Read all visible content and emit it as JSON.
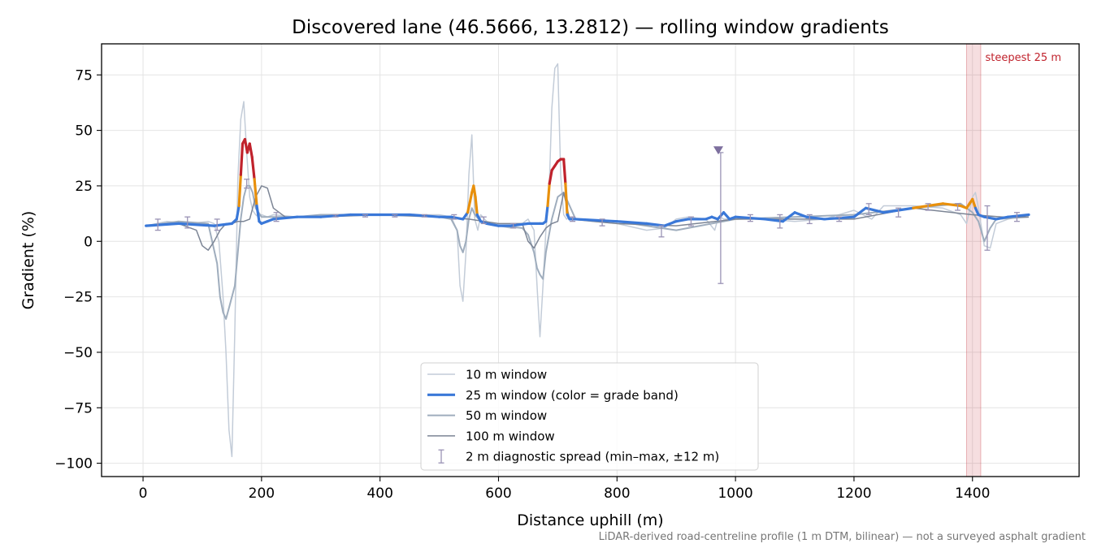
{
  "chart_data": {
    "type": "line",
    "title": "Discovered lane (46.5666, 13.2812) — rolling window gradients",
    "xlabel": "Distance uphill (m)",
    "ylabel": "Gradient (%)",
    "xlim": [
      -70,
      1580
    ],
    "ylim": [
      -106,
      89
    ],
    "xticks": [
      0,
      200,
      400,
      600,
      800,
      1000,
      1200,
      1400
    ],
    "yticks": [
      -100,
      -75,
      -50,
      -25,
      0,
      25,
      50,
      75
    ],
    "xtick_labels": [
      "0",
      "200",
      "400",
      "600",
      "800",
      "1000",
      "1200",
      "1400"
    ],
    "ytick_labels": [
      "−100",
      "−75",
      "−50",
      "−25",
      "0",
      "25",
      "50",
      "75"
    ],
    "grid": true,
    "legend_position": "lower center",
    "footnote": "LiDAR-derived road-centreline profile (1 m DTM, bilinear) — not a surveyed asphalt gradient",
    "annotation": {
      "text": "steepest 25 m",
      "x_range": [
        1390,
        1414
      ],
      "color": "#c0222c"
    },
    "grade_band_colors": {
      "low": "#3a78d8",
      "mid": "#e8900c",
      "high": "#c0222c"
    },
    "series": [
      {
        "name": "10 m window",
        "color": "#c3ccd8",
        "x": [
          5,
          40,
          80,
          110,
          120,
          128,
          135,
          140,
          145,
          150,
          155,
          160,
          165,
          170,
          175,
          180,
          185,
          190,
          195,
          200,
          210,
          220,
          260,
          300,
          350,
          400,
          450,
          500,
          520,
          530,
          535,
          540,
          545,
          550,
          555,
          560,
          565,
          570,
          580,
          600,
          620,
          640,
          650,
          660,
          665,
          670,
          675,
          680,
          685,
          690,
          695,
          700,
          705,
          710,
          715,
          720,
          730,
          760,
          800,
          850,
          880,
          900,
          920,
          950,
          965,
          970,
          975,
          980,
          1000,
          1050,
          1100,
          1150,
          1200,
          1230,
          1250,
          1300,
          1350,
          1380,
          1390,
          1400,
          1405,
          1410,
          1420,
          1430,
          1440,
          1460,
          1495
        ],
        "y": [
          7,
          9,
          8,
          9,
          8,
          0,
          -25,
          -50,
          -85,
          -97,
          -40,
          28,
          55,
          63,
          40,
          20,
          14,
          12,
          11,
          12,
          11,
          12,
          11,
          11,
          12,
          12,
          12,
          12,
          11,
          5,
          -20,
          -27,
          -5,
          30,
          48,
          10,
          5,
          12,
          9,
          7,
          6,
          8,
          10,
          5,
          -20,
          -43,
          -20,
          5,
          20,
          60,
          78,
          80,
          30,
          12,
          10,
          11,
          10,
          9,
          8,
          5,
          6,
          10,
          11,
          10,
          5,
          10,
          11,
          10,
          10,
          10,
          9,
          10,
          14,
          10,
          16,
          16,
          15,
          12,
          8,
          20,
          22,
          15,
          -2,
          -3,
          8,
          10,
          12
        ]
      },
      {
        "name": "50 m window",
        "color": "#9fadbd",
        "x": [
          5,
          60,
          110,
          125,
          130,
          135,
          140,
          145,
          150,
          155,
          160,
          165,
          170,
          175,
          180,
          185,
          190,
          200,
          220,
          260,
          300,
          400,
          500,
          520,
          530,
          535,
          540,
          545,
          550,
          555,
          560,
          570,
          600,
          640,
          650,
          660,
          665,
          670,
          675,
          680,
          690,
          700,
          710,
          730,
          800,
          900,
          1000,
          1100,
          1200,
          1300,
          1380,
          1390,
          1400,
          1410,
          1420,
          1430,
          1440,
          1495
        ],
        "y": [
          7,
          9,
          8,
          -10,
          -25,
          -32,
          -35,
          -30,
          -25,
          -20,
          -5,
          10,
          20,
          25,
          25,
          22,
          15,
          11,
          11,
          11,
          12,
          12,
          11,
          10,
          5,
          -2,
          -5,
          0,
          10,
          15,
          12,
          9,
          7,
          6,
          3,
          -5,
          -12,
          -15,
          -17,
          -5,
          10,
          20,
          22,
          10,
          9,
          5,
          10,
          11,
          12,
          15,
          17,
          15,
          13,
          9,
          0,
          6,
          10,
          11
        ]
      },
      {
        "name": "100 m window",
        "color": "#7c8595",
        "x": [
          5,
          60,
          90,
          100,
          110,
          120,
          130,
          140,
          150,
          160,
          170,
          180,
          190,
          200,
          210,
          220,
          240,
          300,
          400,
          500,
          550,
          600,
          640,
          650,
          660,
          670,
          680,
          690,
          700,
          710,
          720,
          800,
          900,
          1000,
          1100,
          1200,
          1300,
          1400,
          1450,
          1495
        ],
        "y": [
          7,
          8,
          5,
          -2,
          -4,
          0,
          5,
          8,
          8,
          9,
          9,
          10,
          20,
          25,
          24,
          15,
          11,
          11,
          12,
          11,
          10,
          8,
          8,
          0,
          -3,
          2,
          6,
          8,
          9,
          22,
          10,
          8,
          7,
          10,
          10,
          10,
          15,
          12,
          11,
          11
        ]
      },
      {
        "name": "25 m window (color = grade band)",
        "color": "#3a78d8",
        "x": [
          5,
          60,
          120,
          150,
          158,
          162,
          165,
          168,
          172,
          176,
          180,
          184,
          188,
          192,
          196,
          200,
          210,
          220,
          260,
          300,
          350,
          400,
          450,
          500,
          520,
          540,
          548,
          552,
          555,
          558,
          561,
          564,
          570,
          580,
          600,
          620,
          650,
          670,
          675,
          680,
          683,
          686,
          690,
          695,
          700,
          705,
          710,
          713,
          716,
          720,
          730,
          800,
          850,
          880,
          900,
          920,
          950,
          960,
          970,
          980,
          990,
          1000,
          1050,
          1080,
          1100,
          1120,
          1150,
          1200,
          1220,
          1250,
          1300,
          1350,
          1380,
          1390,
          1395,
          1400,
          1405,
          1410,
          1420,
          1440,
          1460,
          1495
        ],
        "y": [
          7,
          8,
          7,
          8,
          10,
          16,
          30,
          44,
          46,
          40,
          44,
          38,
          28,
          16,
          9,
          8,
          9,
          10,
          11,
          11,
          12,
          12,
          12,
          11,
          11,
          10,
          13,
          18,
          22,
          25,
          20,
          12,
          9,
          8,
          7,
          7,
          8,
          8,
          8,
          9,
          16,
          26,
          32,
          34,
          36,
          37,
          37,
          26,
          12,
          10,
          10,
          9,
          8,
          7,
          9,
          10,
          10,
          11,
          10,
          13,
          10,
          11,
          10,
          9,
          13,
          11,
          10,
          11,
          15,
          13,
          15,
          17,
          16,
          15,
          17,
          19,
          15,
          12,
          11,
          10,
          11,
          12
        ]
      }
    ],
    "diagnostic": {
      "name": "2 m diagnostic spread (min–max, ±12 m)",
      "color": "#9a93b5",
      "items": [
        {
          "x": 25,
          "lo": 5,
          "hi": 10
        },
        {
          "x": 75,
          "lo": 6,
          "hi": 11
        },
        {
          "x": 125,
          "lo": 5,
          "hi": 10
        },
        {
          "x": 175,
          "lo": 24,
          "hi": 28
        },
        {
          "x": 225,
          "lo": 9,
          "hi": 13
        },
        {
          "x": 325,
          "lo": 11,
          "hi": 12
        },
        {
          "x": 375,
          "lo": 11,
          "hi": 12
        },
        {
          "x": 425,
          "lo": 11,
          "hi": 12
        },
        {
          "x": 475,
          "lo": 11,
          "hi": 12
        },
        {
          "x": 525,
          "lo": 10,
          "hi": 12
        },
        {
          "x": 575,
          "lo": 8,
          "hi": 11
        },
        {
          "x": 625,
          "lo": 6,
          "hi": 8
        },
        {
          "x": 725,
          "lo": 9,
          "hi": 11
        },
        {
          "x": 775,
          "lo": 7,
          "hi": 10
        },
        {
          "x": 875,
          "lo": 2,
          "hi": 7
        },
        {
          "x": 925,
          "lo": 7,
          "hi": 11
        },
        {
          "x": 975,
          "lo": -19,
          "hi": 40
        },
        {
          "x": 1025,
          "lo": 9,
          "hi": 12
        },
        {
          "x": 1075,
          "lo": 6,
          "hi": 12
        },
        {
          "x": 1125,
          "lo": 8,
          "hi": 12
        },
        {
          "x": 1175,
          "lo": 9,
          "hi": 11
        },
        {
          "x": 1225,
          "lo": 12,
          "hi": 17
        },
        {
          "x": 1275,
          "lo": 11,
          "hi": 15
        },
        {
          "x": 1325,
          "lo": 14,
          "hi": 17
        },
        {
          "x": 1375,
          "lo": 14,
          "hi": 17
        },
        {
          "x": 1425,
          "lo": -4,
          "hi": 16
        },
        {
          "x": 1475,
          "lo": 9,
          "hi": 13
        }
      ],
      "outlier": {
        "x": 971,
        "y": 41
      }
    }
  }
}
